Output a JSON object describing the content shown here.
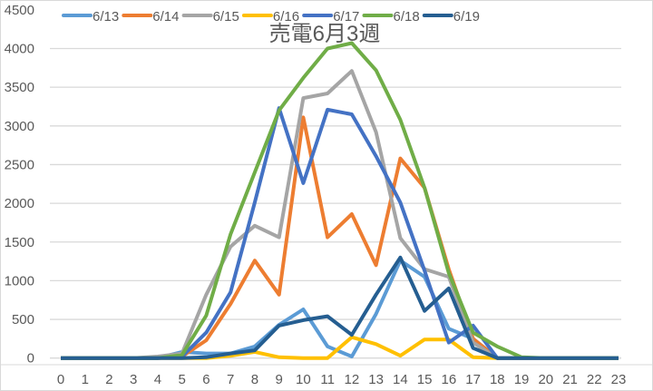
{
  "chart_data": {
    "type": "line",
    "title": "売電6月3週",
    "xlabel": "",
    "ylabel": "",
    "ylim": [
      0,
      4500
    ],
    "yticks": [
      0,
      500,
      1000,
      1500,
      2000,
      2500,
      3000,
      3500,
      4000,
      4500
    ],
    "grid": true,
    "legend_position": "top",
    "x": [
      0,
      1,
      2,
      3,
      4,
      5,
      6,
      7,
      8,
      9,
      10,
      11,
      12,
      13,
      14,
      15,
      16,
      17,
      18,
      19,
      20,
      21,
      22,
      23
    ],
    "series": [
      {
        "name": "6/13",
        "color": "#5B9BD5",
        "values": [
          0,
          0,
          0,
          0,
          0,
          80,
          60,
          60,
          150,
          430,
          630,
          150,
          20,
          570,
          1260,
          1050,
          380,
          250,
          0,
          0,
          0,
          0,
          0,
          0
        ]
      },
      {
        "name": "6/14",
        "color": "#ED7D31",
        "values": [
          0,
          0,
          0,
          0,
          0,
          20,
          230,
          700,
          1260,
          820,
          3110,
          1560,
          1860,
          1200,
          2580,
          2200,
          1150,
          250,
          0,
          0,
          0,
          0,
          0,
          0
        ]
      },
      {
        "name": "6/15",
        "color": "#A5A5A5",
        "values": [
          0,
          0,
          0,
          0,
          20,
          60,
          820,
          1440,
          1710,
          1560,
          3360,
          3420,
          3710,
          2920,
          1550,
          1150,
          1050,
          200,
          0,
          0,
          0,
          0,
          0,
          0
        ]
      },
      {
        "name": "6/16",
        "color": "#FFC000",
        "values": [
          0,
          0,
          0,
          0,
          0,
          0,
          0,
          30,
          80,
          10,
          0,
          0,
          270,
          180,
          30,
          240,
          240,
          10,
          0,
          0,
          0,
          0,
          0,
          0
        ]
      },
      {
        "name": "6/17",
        "color": "#4472C4",
        "values": [
          0,
          0,
          0,
          0,
          0,
          20,
          330,
          850,
          2010,
          3230,
          2260,
          3210,
          3150,
          2610,
          2010,
          1130,
          200,
          420,
          0,
          0,
          0,
          0,
          0,
          0
        ]
      },
      {
        "name": "6/18",
        "color": "#70AD47",
        "values": [
          0,
          0,
          0,
          0,
          0,
          40,
          550,
          1600,
          2400,
          3200,
          3620,
          4000,
          4070,
          3720,
          3080,
          2200,
          1100,
          330,
          150,
          10,
          0,
          0,
          0,
          0
        ]
      },
      {
        "name": "6/19",
        "color": "#255E91",
        "values": [
          0,
          0,
          0,
          0,
          0,
          0,
          10,
          60,
          100,
          420,
          490,
          540,
          300,
          820,
          1300,
          610,
          900,
          130,
          0,
          0,
          0,
          0,
          0,
          0
        ]
      }
    ]
  }
}
